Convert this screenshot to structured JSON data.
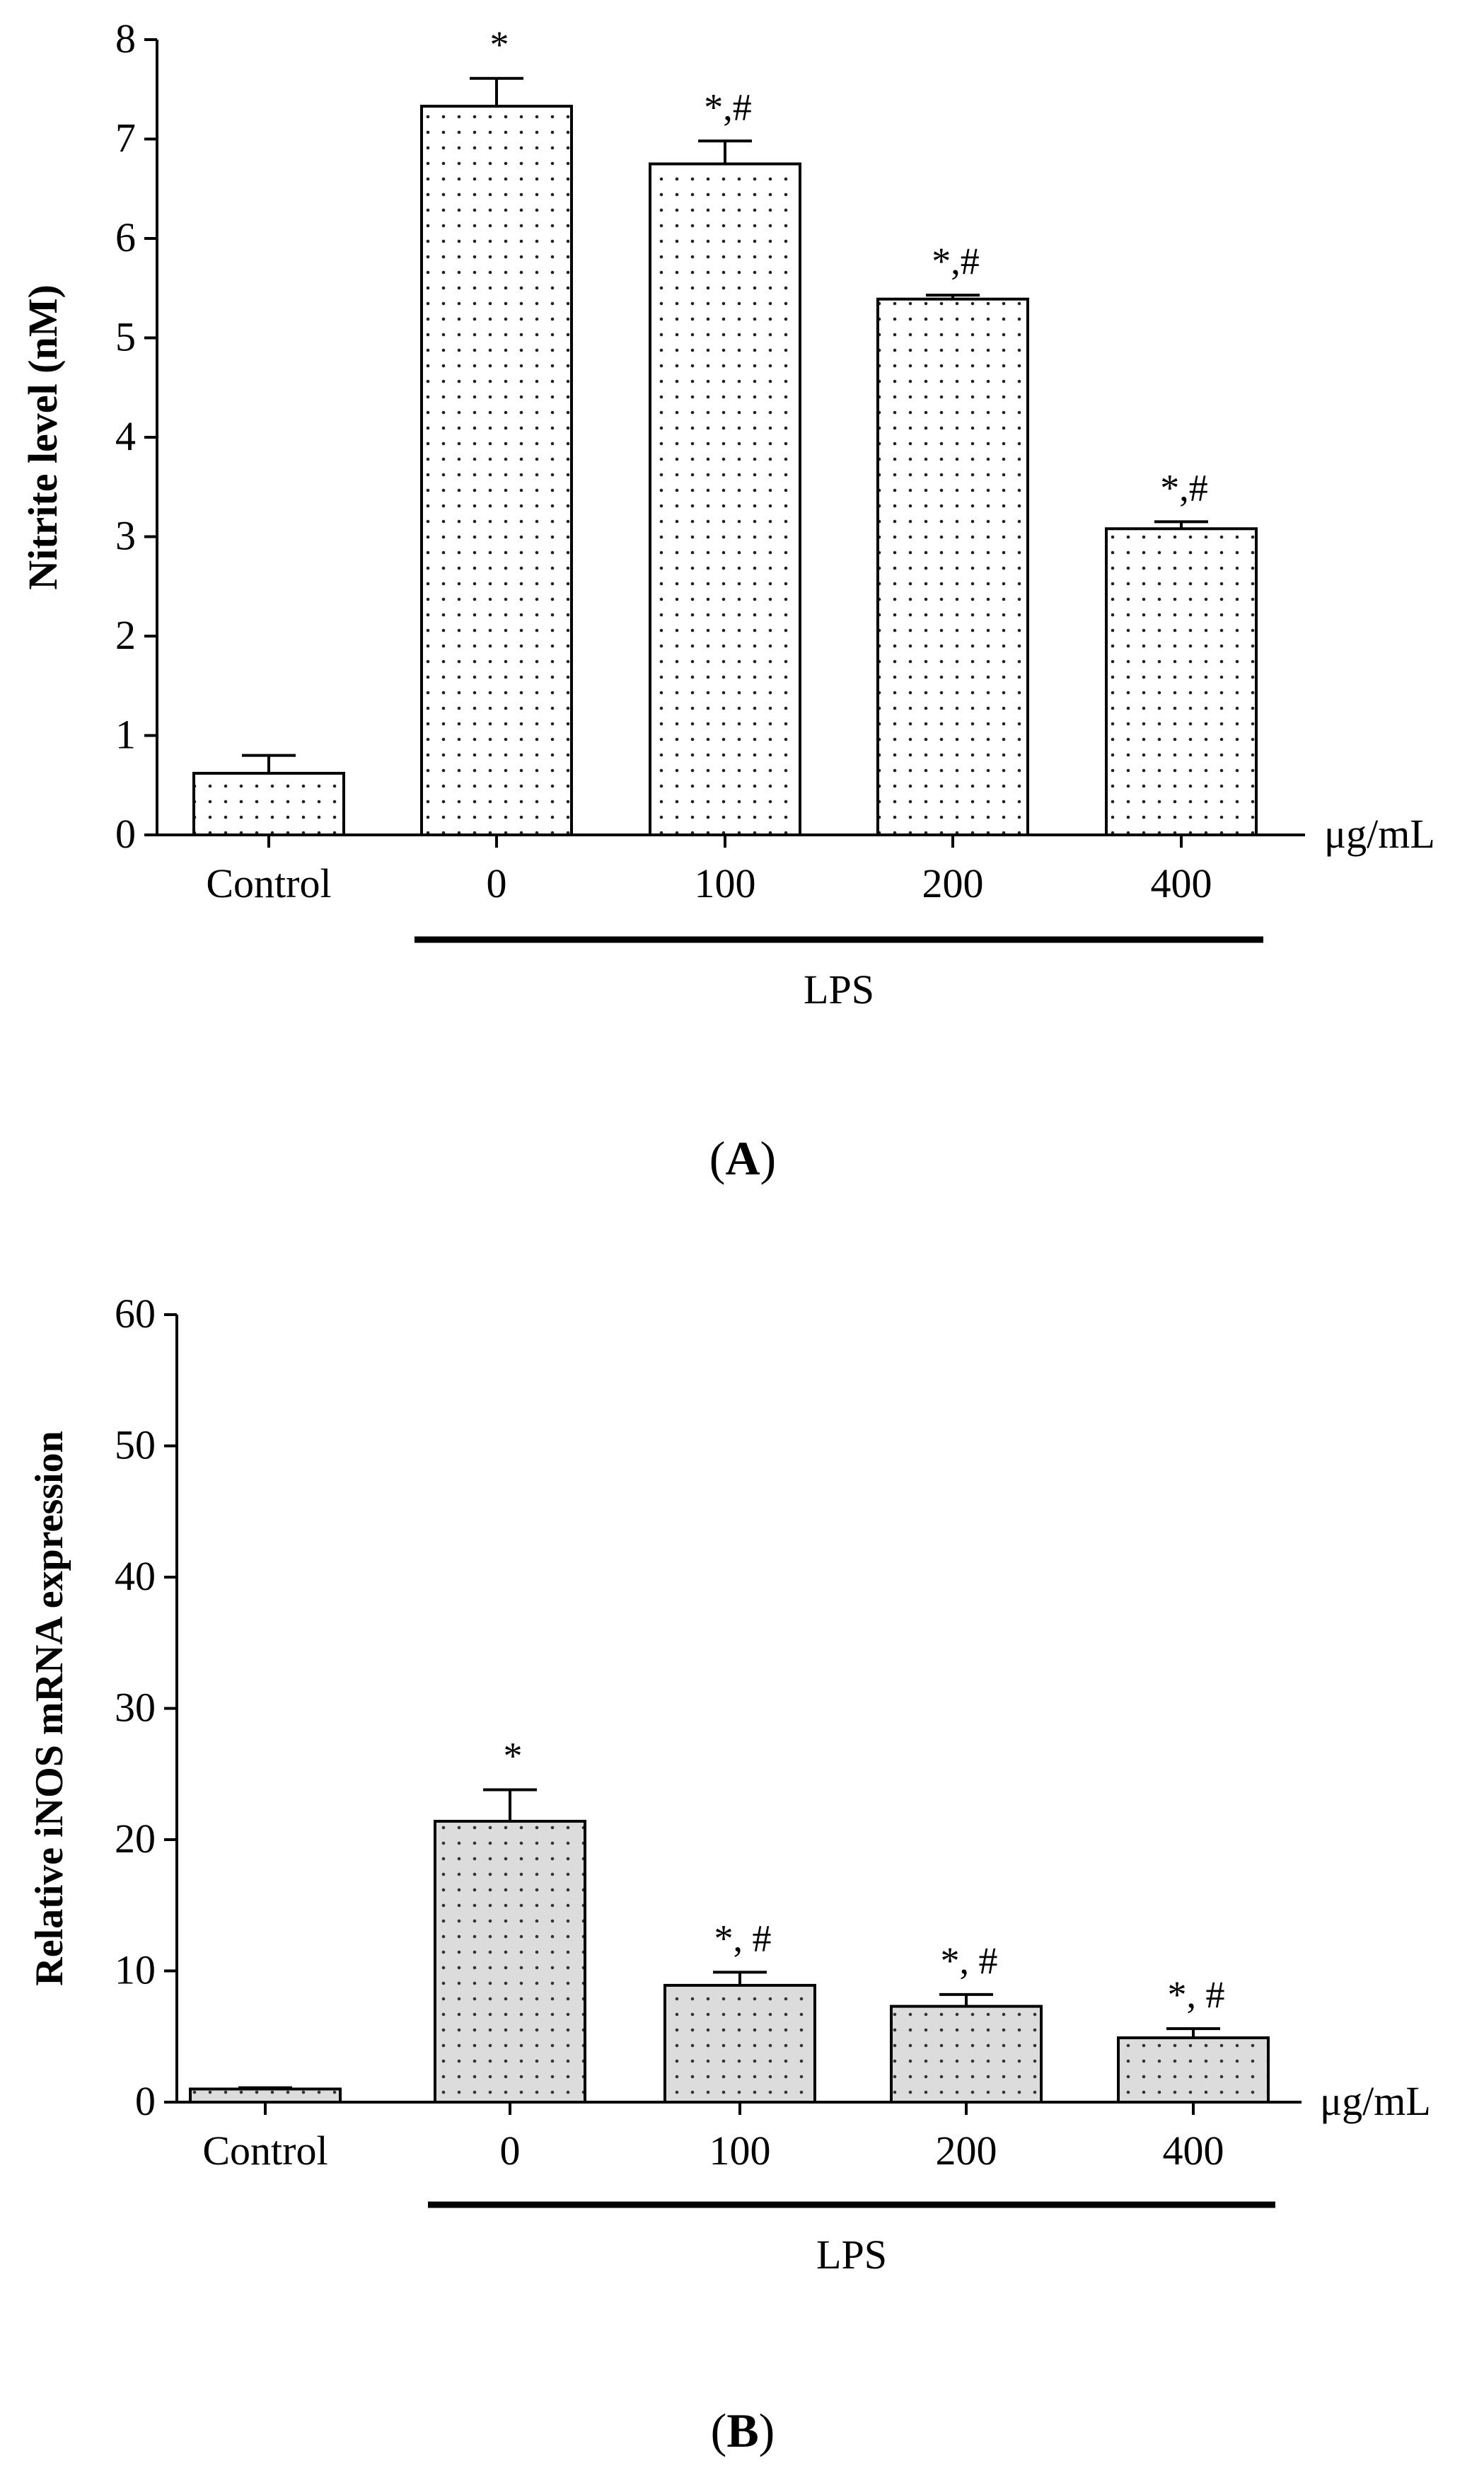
{
  "chart_data": [
    {
      "type": "bar",
      "panel_label_open": "(",
      "panel_label": "A",
      "panel_label_close": ")",
      "ylabel": "Nitrite level (nM)",
      "xlabel": "",
      "unit_label": "μg/mL",
      "group_label": "LPS",
      "categories": [
        "Control",
        "0",
        "100",
        "200",
        "400"
      ],
      "values": [
        0.62,
        7.33,
        6.75,
        5.39,
        3.08
      ],
      "errors": [
        0.18,
        0.28,
        0.23,
        0.04,
        0.07
      ],
      "annotations": [
        "",
        "*",
        "*,#",
        "*,#",
        "*,#"
      ],
      "ylim": [
        0,
        8
      ],
      "yticks": [
        0,
        1,
        2,
        3,
        4,
        5,
        6,
        7,
        8
      ],
      "bar_fill": "#ffffff",
      "dot_color": "#222222"
    },
    {
      "type": "bar",
      "panel_label_open": "(",
      "panel_label": "B",
      "panel_label_close": ")",
      "ylabel": "Relative iNOS mRNA expression",
      "xlabel": "",
      "unit_label": "μg/mL",
      "group_label": "LPS",
      "categories": [
        "Control",
        "0",
        "100",
        "200",
        "400"
      ],
      "values": [
        1.0,
        21.4,
        8.9,
        7.3,
        4.9
      ],
      "errors": [
        0.1,
        2.4,
        1.0,
        0.9,
        0.7
      ],
      "annotations": [
        "",
        "*",
        "*, #",
        "*, #",
        "*, #"
      ],
      "ylim": [
        0,
        60
      ],
      "yticks": [
        0,
        10,
        20,
        30,
        40,
        50,
        60
      ],
      "bar_fill": "#dcdcdc",
      "dot_color": "#333333"
    }
  ]
}
